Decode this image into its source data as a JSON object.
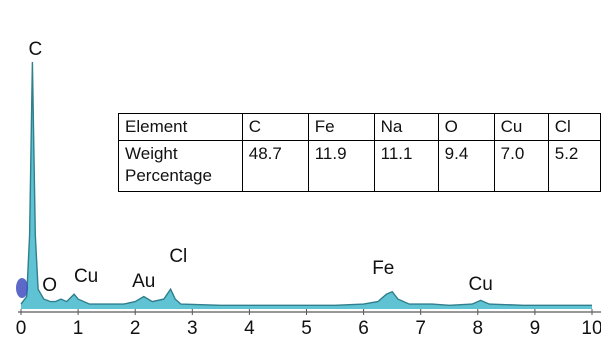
{
  "chart_data": {
    "type": "line",
    "title": "",
    "xlabel": "",
    "ylabel": "",
    "xlim": [
      0,
      10
    ],
    "grid": false,
    "x_ticks": [
      "0",
      "1",
      "2",
      "3",
      "4",
      "5",
      "6",
      "7",
      "8",
      "9",
      "10"
    ],
    "spectrum_color": "#5fc3d3",
    "outline_color": "#2f7f8c",
    "marker_color": "#3f4fbf",
    "peak_labels": [
      {
        "label": "C",
        "x": 0.2
      },
      {
        "label": "O",
        "x": 0.45
      },
      {
        "label": "Cu",
        "x": 0.93
      },
      {
        "label": "Au",
        "x": 2.15
      },
      {
        "label": "Cl",
        "x": 2.65
      },
      {
        "label": "Fe",
        "x": 6.45
      },
      {
        "label": "Cu",
        "x": 8.05
      }
    ],
    "spectrum": [
      [
        0.0,
        0.02
      ],
      [
        0.1,
        0.05
      ],
      [
        0.15,
        0.3
      ],
      [
        0.2,
        1.0
      ],
      [
        0.25,
        0.3
      ],
      [
        0.3,
        0.08
      ],
      [
        0.4,
        0.04
      ],
      [
        0.52,
        0.03
      ],
      [
        0.6,
        0.03
      ],
      [
        0.7,
        0.04
      ],
      [
        0.8,
        0.03
      ],
      [
        0.93,
        0.06
      ],
      [
        1.0,
        0.04
      ],
      [
        1.2,
        0.02
      ],
      [
        1.5,
        0.02
      ],
      [
        1.8,
        0.02
      ],
      [
        2.0,
        0.03
      ],
      [
        2.15,
        0.05
      ],
      [
        2.3,
        0.03
      ],
      [
        2.5,
        0.04
      ],
      [
        2.62,
        0.08
      ],
      [
        2.7,
        0.04
      ],
      [
        2.8,
        0.02
      ],
      [
        3.5,
        0.015
      ],
      [
        4.5,
        0.015
      ],
      [
        5.5,
        0.015
      ],
      [
        6.0,
        0.02
      ],
      [
        6.25,
        0.03
      ],
      [
        6.4,
        0.06
      ],
      [
        6.5,
        0.07
      ],
      [
        6.6,
        0.04
      ],
      [
        6.8,
        0.02
      ],
      [
        7.0,
        0.02
      ],
      [
        7.2,
        0.02
      ],
      [
        7.5,
        0.015
      ],
      [
        7.9,
        0.02
      ],
      [
        8.05,
        0.035
      ],
      [
        8.2,
        0.02
      ],
      [
        8.8,
        0.015
      ],
      [
        9.5,
        0.015
      ],
      [
        10.0,
        0.015
      ]
    ],
    "table": {
      "header": [
        "Element",
        "C",
        "Fe",
        "Na",
        "O",
        "Cu",
        "Cl"
      ],
      "row_label_line1": "Weight",
      "row_label_line2": "Percentage",
      "values": [
        "48.7",
        "11.9",
        "11.1",
        "9.4",
        "7.0",
        "5.2"
      ]
    }
  }
}
